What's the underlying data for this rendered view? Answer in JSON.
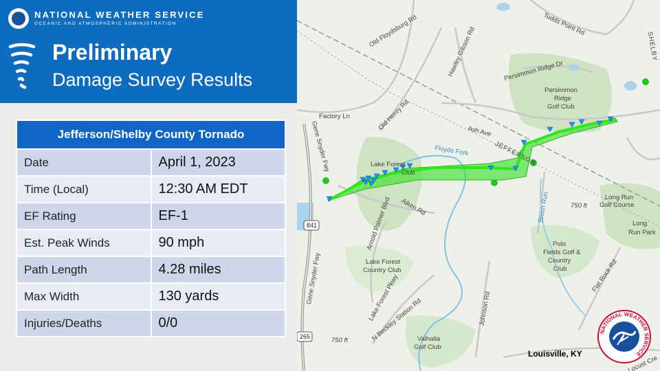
{
  "header": {
    "agency": "NATIONAL WEATHER SERVICE",
    "subagency": "OCEANIC AND ATMOSPHERIC ADMINISTRATION",
    "title_line1": "Preliminary",
    "title_line2": "Damage Survey Results"
  },
  "table": {
    "title": "Jefferson/Shelby County Tornado",
    "rows": [
      {
        "label": "Date",
        "value": "April 1, 2023"
      },
      {
        "label": "Time (Local)",
        "value": "12:30 AM EDT"
      },
      {
        "label": "EF Rating",
        "value": "EF-1"
      },
      {
        "label": "Est. Peak Winds",
        "value": "90 mph"
      },
      {
        "label": "Path Length",
        "value": "4.28 miles"
      },
      {
        "label": "Max Width",
        "value": "130 yards"
      },
      {
        "label": "Injuries/Deaths",
        "value": "0/0"
      }
    ]
  },
  "map": {
    "labels": {
      "old_floydsburg": "Old Floydsburg Rd",
      "hawley_gibson": "Hawley Gibson Rd",
      "todds_point": "Todds Point Rd",
      "shelby": "SHELBY",
      "persimmon_ridge_rd": "Persimmon Ridge Dr",
      "persimmon_golf_1": "Persimmon",
      "persimmon_golf_2": "Ridge",
      "persimmon_golf_3": "Golf Club",
      "old_henry": "Old Henry Rd",
      "factory": "Factory Ln",
      "ash": "Ash Ave",
      "jefferson": "JEFFERSON",
      "floyds_fork": "Floyds Fork",
      "gene_snyder_1": "Gene Snyder Fwy",
      "lake_forest_1": "Lake Forest",
      "lake_forest_club": "Club",
      "aiken": "Aiken Rd",
      "arnold_palmer": "Arnold Palmer Blvd",
      "brush_run": "Brush Run",
      "long_run_golf_1": "Long Run",
      "long_run_golf_2": "Golf Course",
      "long_run_park_1": "Long",
      "long_run_park_2": "Run Park",
      "elev_1": "750 ft",
      "polo_1": "Polo",
      "polo_2": "Fields Golf &",
      "polo_3": "Country",
      "polo_4": "Club",
      "flat_rock": "Flat Rock Rd",
      "lake_forest_cc_1": "Lake Forest",
      "lake_forest_cc_2": "Country Club",
      "lake_forest_pkwy": "Lake Forest Pkwy",
      "n_beckley": "N Beckley Station Rd",
      "johnson": "Johnson Rd",
      "gene_snyder_2": "Gene Snyder Fwy",
      "route_841": "841",
      "route_265": "265",
      "elev_2": "750 ft",
      "valhalla_1": "Valhalla",
      "valhalla_2": "Golf Club",
      "locust": "Locust Cre"
    }
  },
  "footer": {
    "city": "Louisville, KY",
    "logo_text": "NATIONAL WEATHER SERVICE"
  },
  "colors": {
    "header_bg": "#0e6cbf",
    "table_header": "#1066c7",
    "row_dark": "#cfd6ea",
    "row_light": "#e8ebf5",
    "track_green": "#33dd22",
    "marker_blue": "#1e90ff"
  }
}
